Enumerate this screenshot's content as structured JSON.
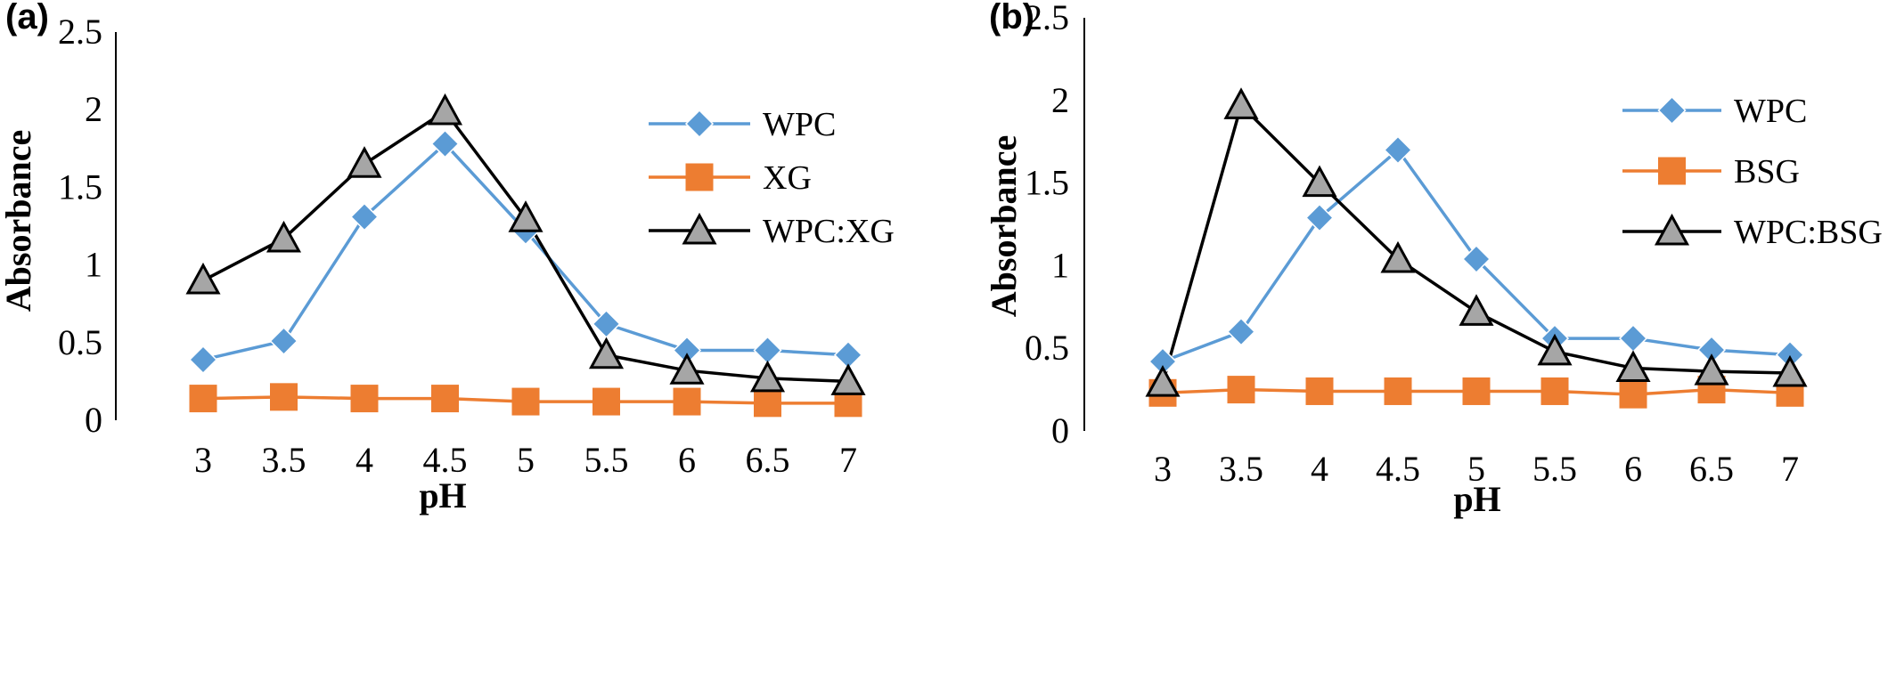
{
  "chart_data": [
    {
      "type": "line",
      "panel_label": "(a)",
      "xlabel": "pH",
      "ylabel": "Absorbance",
      "x": [
        3,
        3.5,
        4,
        4.5,
        5,
        5.5,
        6,
        6.5,
        7
      ],
      "x_tick_labels": [
        "3",
        "3.5",
        "4",
        "4.5",
        "5",
        "5.5",
        "6",
        "6.5",
        "7"
      ],
      "ylim": [
        0,
        2.5
      ],
      "y_tick_labels": [
        "0",
        "0.5",
        "1",
        "1.5",
        "2",
        "2.5"
      ],
      "grid": false,
      "legend_position": "right",
      "series": [
        {
          "name": "WPC",
          "color": "#5b9bd5",
          "marker": "diamond",
          "values": [
            0.39,
            0.51,
            1.31,
            1.78,
            1.22,
            0.62,
            0.45,
            0.45,
            0.42
          ]
        },
        {
          "name": "XG",
          "color": "#ed7d31",
          "marker": "square",
          "values": [
            0.14,
            0.15,
            0.14,
            0.14,
            0.12,
            0.12,
            0.12,
            0.11,
            0.11
          ]
        },
        {
          "name": "WPC:XG",
          "color": "#000000",
          "marker_fill": "#a6a6a6",
          "marker": "triangle",
          "values": [
            0.9,
            1.17,
            1.65,
            1.99,
            1.3,
            0.42,
            0.32,
            0.27,
            0.25
          ]
        }
      ]
    },
    {
      "type": "line",
      "panel_label": "(b)",
      "xlabel": "pH",
      "ylabel": "Absorbance",
      "x": [
        3,
        3.5,
        4,
        4.5,
        5,
        5.5,
        6,
        6.5,
        7
      ],
      "x_tick_labels": [
        "3",
        "3.5",
        "4",
        "4.5",
        "5",
        "5.5",
        "6",
        "6.5",
        "7"
      ],
      "ylim": [
        0,
        2.5
      ],
      "y_tick_labels": [
        "0",
        "0.5",
        "1",
        "1.5",
        "2",
        "2.5"
      ],
      "grid": false,
      "legend_position": "right",
      "series": [
        {
          "name": "WPC",
          "color": "#5b9bd5",
          "marker": "diamond",
          "values": [
            0.42,
            0.6,
            1.29,
            1.7,
            1.04,
            0.56,
            0.56,
            0.49,
            0.46
          ]
        },
        {
          "name": "BSG",
          "color": "#ed7d31",
          "marker": "square",
          "values": [
            0.23,
            0.25,
            0.24,
            0.24,
            0.24,
            0.24,
            0.22,
            0.25,
            0.23
          ]
        },
        {
          "name": "WPC:BSG",
          "color": "#000000",
          "marker_fill": "#a6a6a6",
          "marker": "triangle",
          "values": [
            0.29,
            1.97,
            1.5,
            1.04,
            0.72,
            0.48,
            0.38,
            0.36,
            0.35
          ]
        }
      ]
    }
  ]
}
